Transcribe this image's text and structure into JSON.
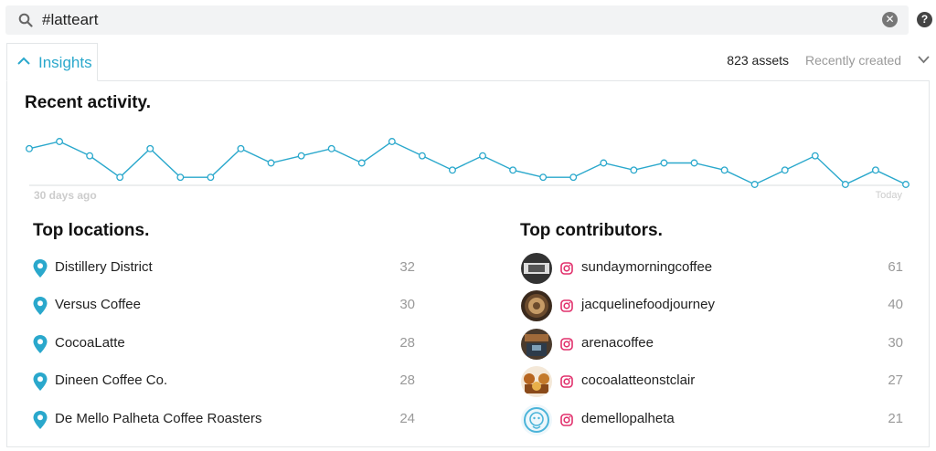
{
  "search": {
    "query": "#latteart"
  },
  "tabs": {
    "insights_label": "Insights"
  },
  "toolbar": {
    "assets_count": "823 assets",
    "sort_label": "Recently created"
  },
  "activity": {
    "title": "Recent activity.",
    "start_label": "30 days ago",
    "end_label": "Today"
  },
  "chart_data": {
    "type": "line",
    "values": [
      5,
      6,
      4,
      1,
      5,
      1,
      1,
      5,
      3,
      4,
      5,
      3,
      6,
      4,
      2,
      4,
      2,
      1,
      1,
      3,
      2,
      3,
      3,
      2,
      0,
      2,
      4,
      0,
      2,
      0
    ],
    "ylim": [
      0,
      6
    ],
    "color": "#2aa8cc"
  },
  "locations": {
    "title": "Top locations.",
    "items": [
      {
        "name": "Distillery District",
        "count": "32"
      },
      {
        "name": "Versus Coffee",
        "count": "30"
      },
      {
        "name": "CocoaLatte",
        "count": "28"
      },
      {
        "name": "Dineen Coffee Co.",
        "count": "28"
      },
      {
        "name": "De Mello Palheta Coffee Roasters",
        "count": "24"
      }
    ]
  },
  "contributors": {
    "title": "Top contributors.",
    "items": [
      {
        "name": "sundaymorningcoffee",
        "count": "61"
      },
      {
        "name": "jacquelinefoodjourney",
        "count": "40"
      },
      {
        "name": "arenacoffee",
        "count": "30"
      },
      {
        "name": "cocoalatteonstclair",
        "count": "27"
      },
      {
        "name": "demellopalheta",
        "count": "21"
      }
    ]
  },
  "colors": {
    "accent": "#2aa8cc",
    "instagram": "#e1306c"
  },
  "icons": {
    "search": "search-icon",
    "clear": "clear-icon",
    "help": "help-icon",
    "location": "location-pin-icon",
    "instagram": "instagram-icon"
  }
}
